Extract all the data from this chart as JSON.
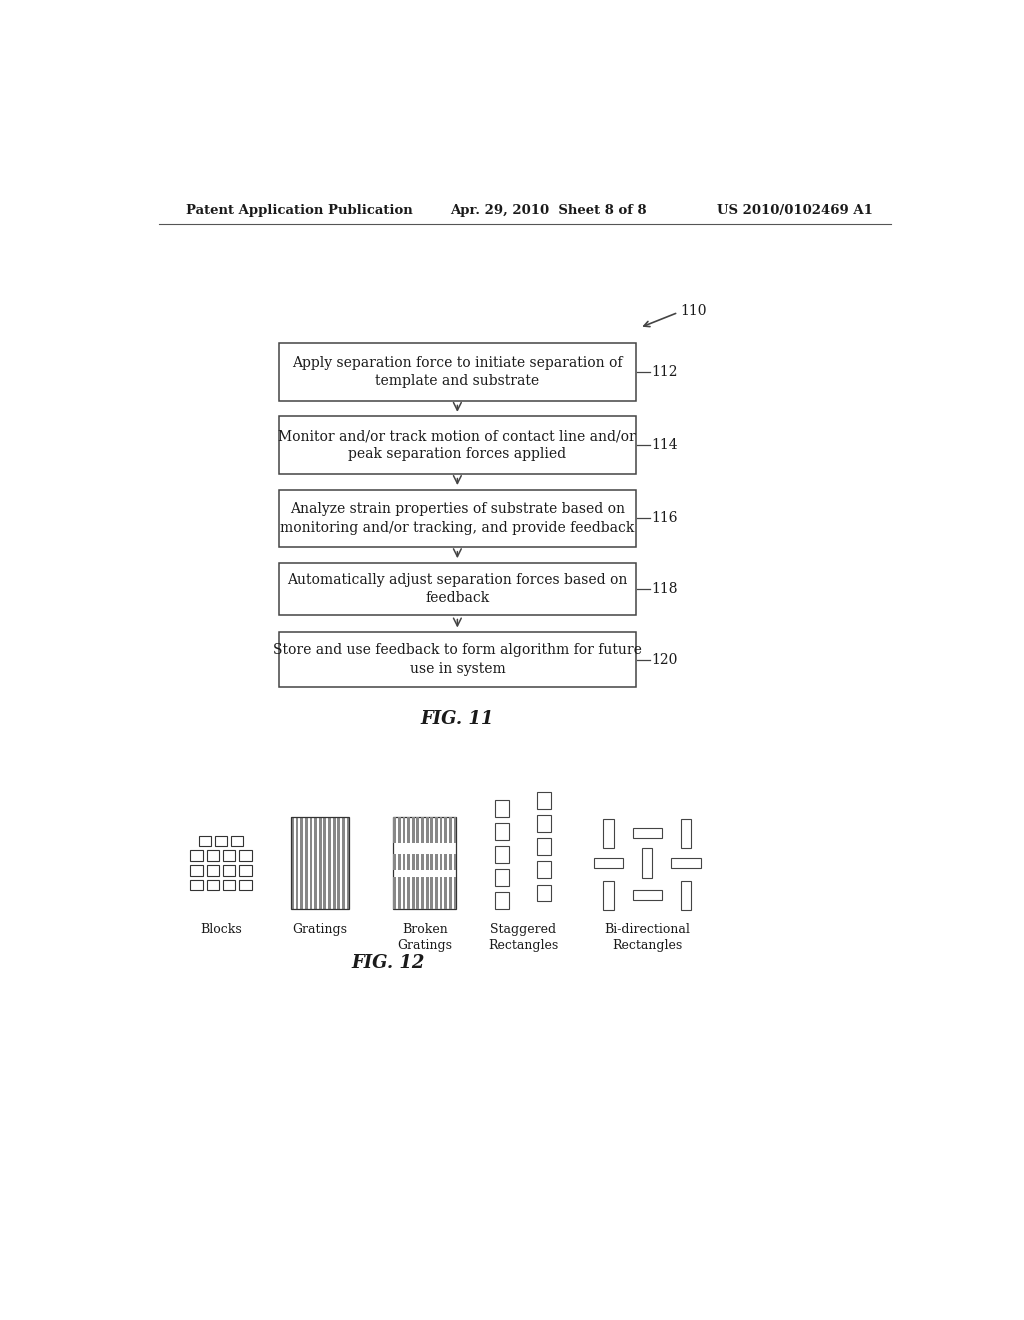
{
  "header_left": "Patent Application Publication",
  "header_center": "Apr. 29, 2010  Sheet 8 of 8",
  "header_right": "US 2010/0102469 A1",
  "fig11_label": "FIG. 11",
  "fig12_label": "FIG. 12",
  "flowchart_boxes": [
    {
      "text": "Apply separation force to initiate separation of\ntemplate and substrate",
      "label": "112"
    },
    {
      "text": "Monitor and/or track motion of contact line and/or\npeak separation forces applied",
      "label": "114"
    },
    {
      "text": "Analyze strain properties of substrate based on\nmonitoring and/or tracking, and provide feedback",
      "label": "116"
    },
    {
      "text": "Automatically adjust separation forces based on\nfeedback",
      "label": "118"
    },
    {
      "text": "Store and use feedback to form algorithm for future\nuse in system",
      "label": "120"
    }
  ],
  "pattern_labels": [
    "Blocks",
    "Gratings",
    "Broken\nGratings",
    "Staggered\nRectangles",
    "Bi-directional\nRectangles"
  ],
  "bg_color": "#ffffff",
  "box_edge_color": "#444444",
  "text_color": "#1a1a1a",
  "arrow_color": "#444444"
}
